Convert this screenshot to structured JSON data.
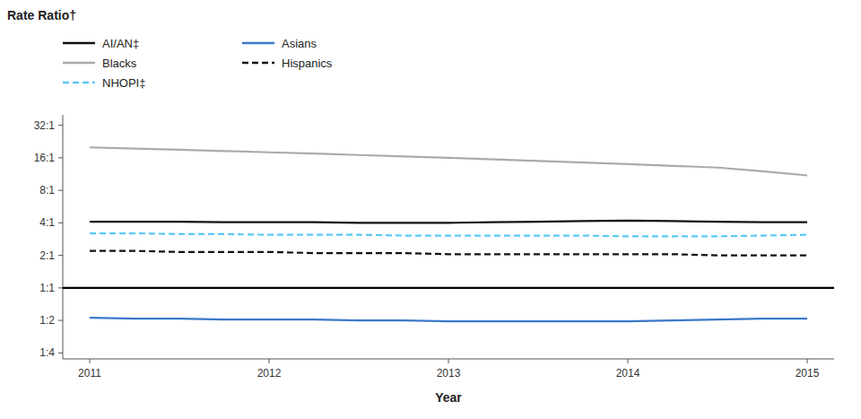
{
  "chart_data": {
    "type": "line",
    "y_label": "Rate Ratio†",
    "x_label": "Year",
    "x": [
      2011,
      2011.25,
      2011.5,
      2011.75,
      2012,
      2012.25,
      2012.5,
      2012.75,
      2013,
      2013.25,
      2013.5,
      2013.75,
      2014,
      2014.25,
      2014.5,
      2014.75,
      2015
    ],
    "series": [
      {
        "name": "AI/AN‡",
        "color": "#111111",
        "line_style": "solid",
        "values": [
          4.1,
          4.1,
          4.1,
          4.05,
          4.05,
          4.05,
          4.0,
          4.0,
          4.0,
          4.05,
          4.1,
          4.15,
          4.2,
          4.15,
          4.1,
          4.05,
          4.05
        ]
      },
      {
        "name": "Asians",
        "color": "#3a78c9",
        "line_style": "solid",
        "values": [
          0.53,
          0.52,
          0.52,
          0.51,
          0.51,
          0.51,
          0.5,
          0.5,
          0.49,
          0.49,
          0.49,
          0.49,
          0.49,
          0.5,
          0.51,
          0.52,
          0.52
        ]
      },
      {
        "name": "Blacks",
        "color": "#aaaaaa",
        "line_style": "solid",
        "values": [
          20.0,
          19.5,
          19.0,
          18.5,
          18.0,
          17.5,
          17.0,
          16.5,
          16.0,
          15.5,
          15.0,
          14.5,
          14.0,
          13.5,
          13.0,
          12.0,
          11.0
        ]
      },
      {
        "name": "Hispanics",
        "color": "#111111",
        "line_style": "dashed",
        "values": [
          2.2,
          2.2,
          2.15,
          2.15,
          2.15,
          2.1,
          2.1,
          2.1,
          2.05,
          2.05,
          2.05,
          2.05,
          2.05,
          2.05,
          2.0,
          2.0,
          2.0
        ]
      },
      {
        "name": "NHOPI‡",
        "color": "#5bc8f5",
        "line_style": "dashed",
        "values": [
          3.2,
          3.2,
          3.15,
          3.15,
          3.1,
          3.1,
          3.1,
          3.05,
          3.05,
          3.05,
          3.05,
          3.05,
          3.0,
          3.0,
          3.0,
          3.05,
          3.1
        ]
      }
    ],
    "hlines": [
      1.0
    ],
    "xlim": [
      2010.85,
      2015.15
    ],
    "xticks": [
      2011,
      2012,
      2013,
      2014,
      2015
    ],
    "ylim": [
      0.22,
      40
    ],
    "yticks": [
      {
        "value": 0.25,
        "label": "1:4"
      },
      {
        "value": 0.5,
        "label": "1:2"
      },
      {
        "value": 1.0,
        "label": "1:1"
      },
      {
        "value": 2.0,
        "label": "2:1"
      },
      {
        "value": 4.0,
        "label": "4:1"
      },
      {
        "value": 8.0,
        "label": "8:1"
      },
      {
        "value": 16.0,
        "label": "16:1"
      },
      {
        "value": 32.0,
        "label": "32:1"
      }
    ],
    "log": "y",
    "grid": false,
    "legend": "top"
  }
}
